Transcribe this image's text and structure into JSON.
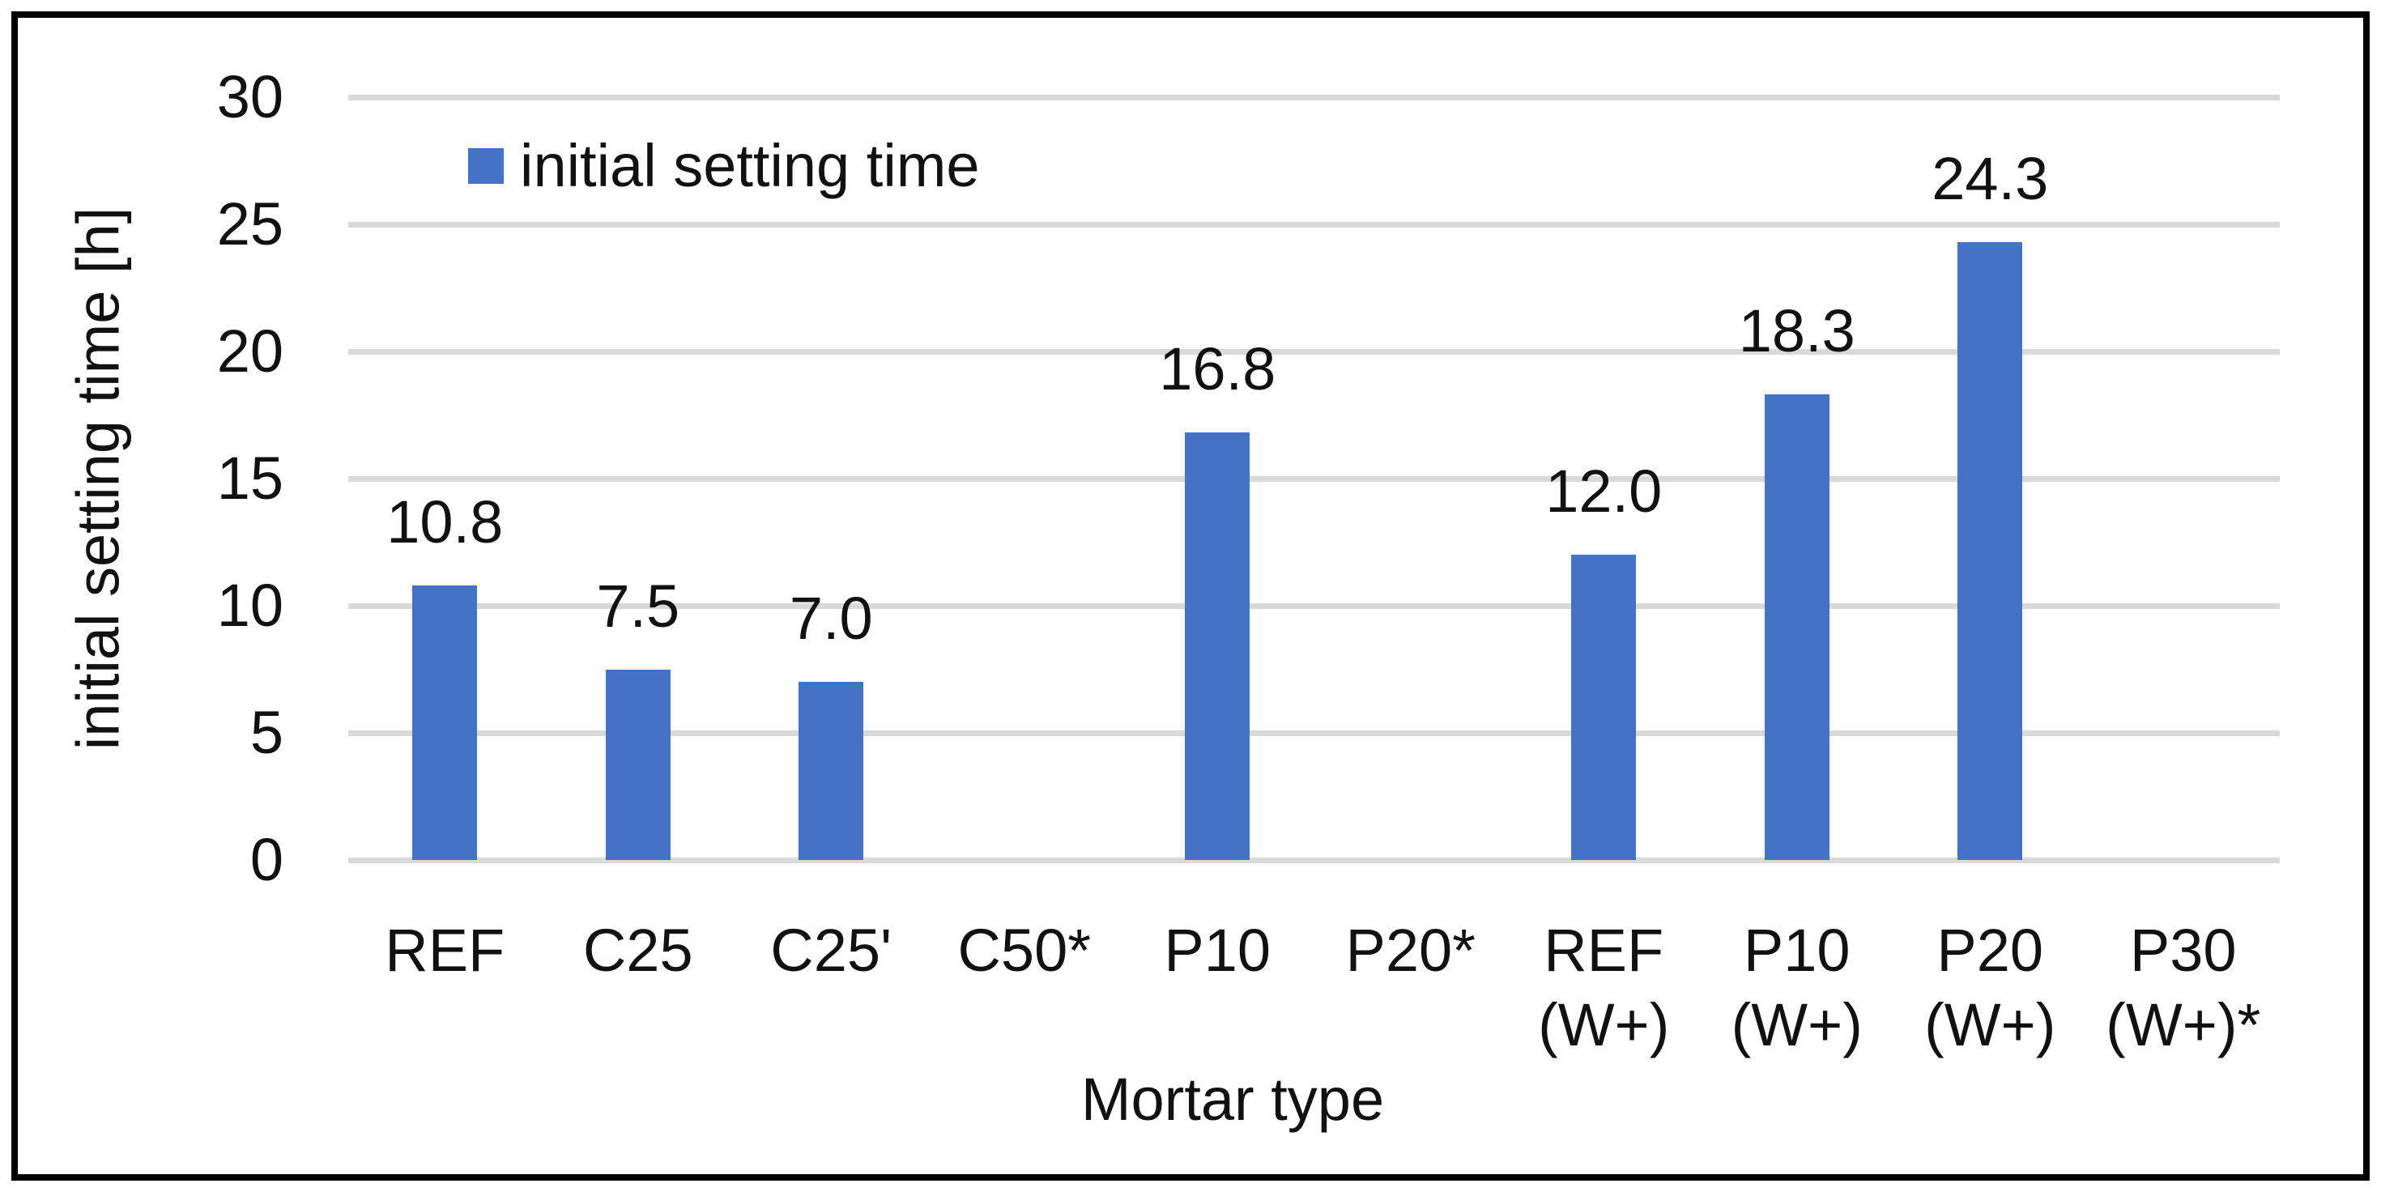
{
  "chart_data": {
    "type": "bar",
    "title": "",
    "xlabel": "Mortar type",
    "ylabel": "initial setting time [h]",
    "ylim": [
      0,
      30
    ],
    "yticks": [
      0,
      5,
      10,
      15,
      20,
      25,
      30
    ],
    "grid": true,
    "legend": {
      "label": "initial setting time",
      "position": "top-left-inside",
      "color": "#4472C4"
    },
    "bar_color": "#4472C4",
    "gridline_color": "#D9D9D9",
    "categories": [
      {
        "lines": [
          "REF"
        ],
        "value": 10.8,
        "data_label": "10.8"
      },
      {
        "lines": [
          "C25"
        ],
        "value": 7.5,
        "data_label": "7.5"
      },
      {
        "lines": [
          "C25'"
        ],
        "value": 7.0,
        "data_label": "7.0"
      },
      {
        "lines": [
          "C50*"
        ],
        "value": null,
        "data_label": ""
      },
      {
        "lines": [
          "P10"
        ],
        "value": 16.8,
        "data_label": "16.8"
      },
      {
        "lines": [
          "P20*"
        ],
        "value": null,
        "data_label": ""
      },
      {
        "lines": [
          "REF",
          "(W+)"
        ],
        "value": 12.0,
        "data_label": "12.0"
      },
      {
        "lines": [
          "P10",
          "(W+)"
        ],
        "value": 18.3,
        "data_label": "18.3"
      },
      {
        "lines": [
          "P20",
          "(W+)"
        ],
        "value": 24.3,
        "data_label": "24.3"
      },
      {
        "lines": [
          "P30",
          "(W+)*"
        ],
        "value": null,
        "data_label": ""
      }
    ]
  }
}
